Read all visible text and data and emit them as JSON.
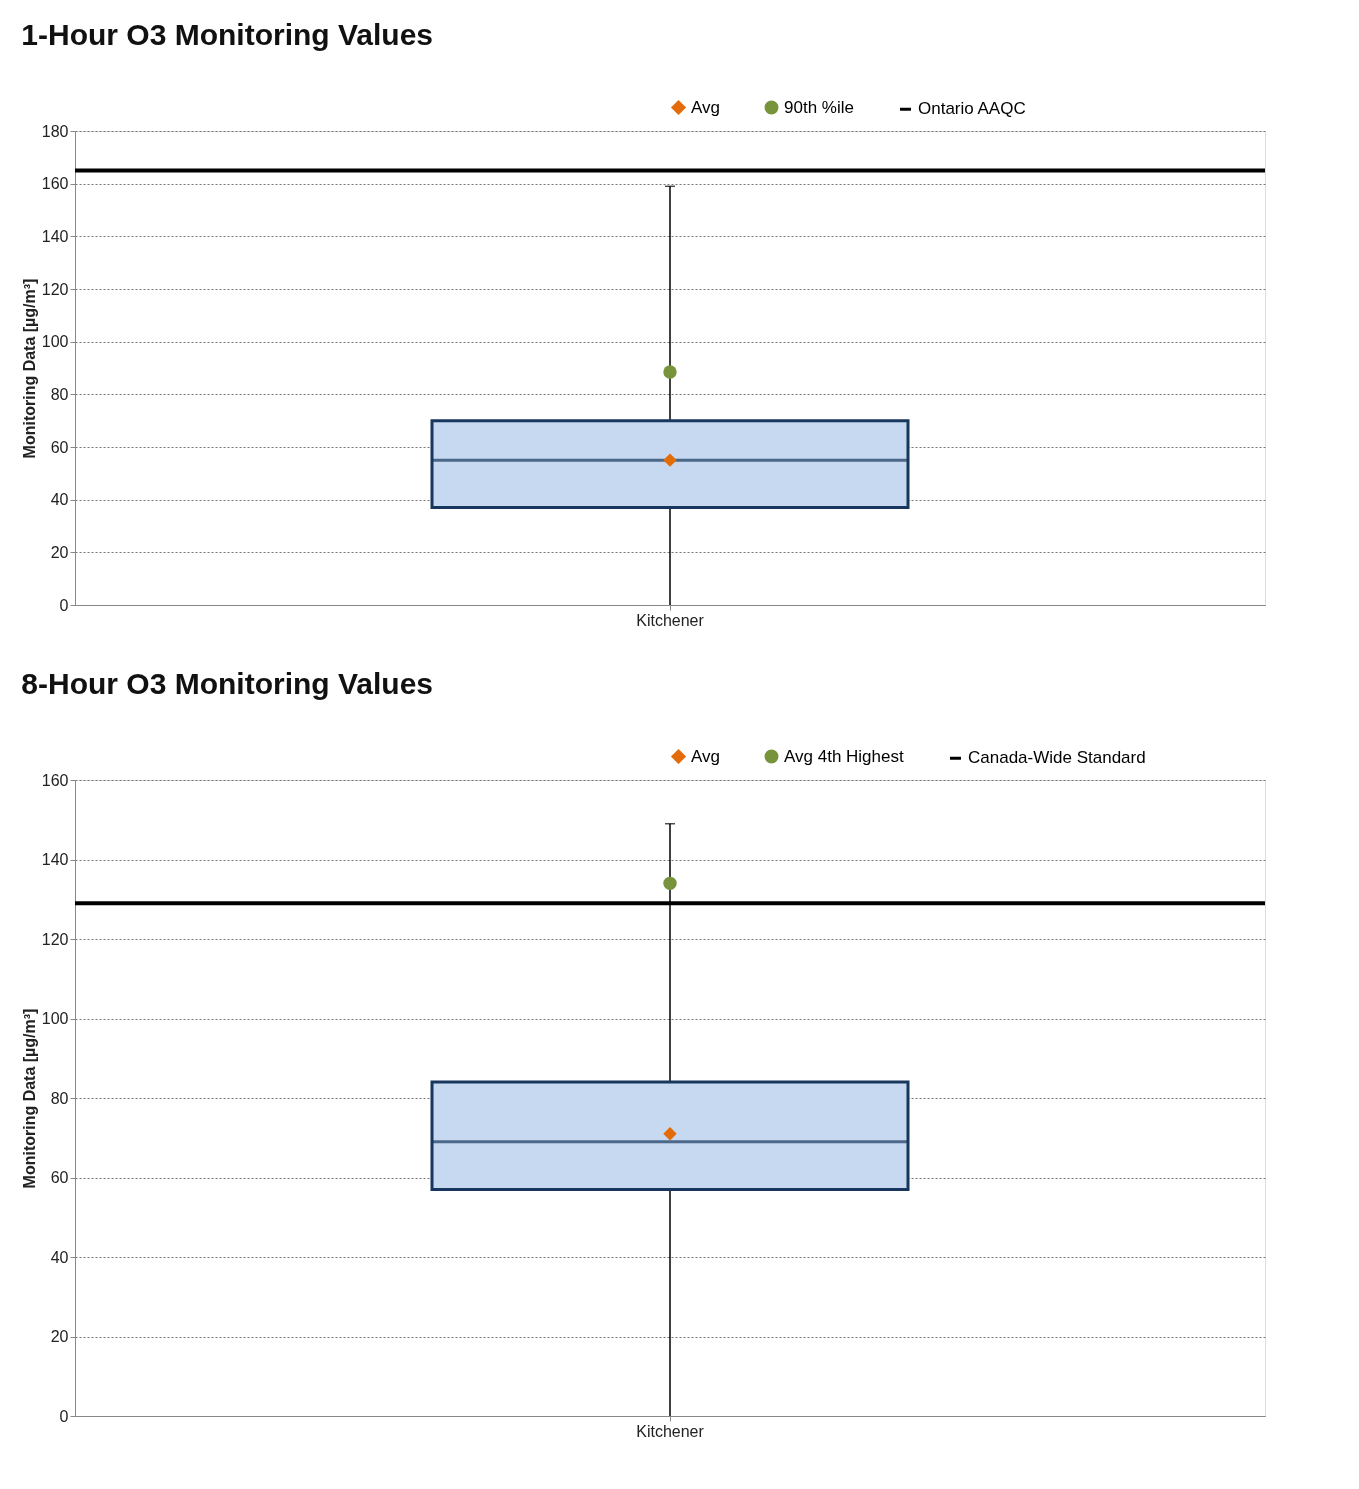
{
  "chart_data": [
    {
      "type": "box",
      "title": "1-Hour O3 Monitoring Values",
      "ylabel": "Monitoring Data [µg/m³]",
      "categories": [
        "Kitchener"
      ],
      "series": [
        {
          "type": "box",
          "color": "#c6d9f1",
          "boxes": [
            {
              "low": 0,
              "q1": 37,
              "median": 55,
              "q3": 70,
              "high": 159
            }
          ]
        },
        {
          "type": "scatter",
          "name": "Avg",
          "color": "#e36c09",
          "marker": "diamond",
          "x": [
            "Kitchener"
          ],
          "values": [
            55
          ]
        },
        {
          "type": "scatter",
          "name": "90th %ile",
          "color": "#77933c",
          "marker": "circle",
          "x": [
            "Kitchener"
          ],
          "values": [
            88.5
          ]
        }
      ],
      "ref_lines": [
        {
          "axis": "y",
          "value": 165,
          "label": "Ontario AAQC",
          "color": "#000000"
        }
      ],
      "ylim": [
        0,
        180
      ],
      "yticks": [
        0,
        20,
        40,
        60,
        80,
        100,
        120,
        140,
        160,
        180
      ],
      "grid": "y",
      "legend": "top right"
    },
    {
      "type": "box",
      "title": "8-Hour O3 Monitoring Values",
      "ylabel": "Monitoring Data [µg/m³]",
      "categories": [
        "Kitchener"
      ],
      "series": [
        {
          "type": "box",
          "color": "#c6d9f1",
          "boxes": [
            {
              "low": 0,
              "q1": 57,
              "median": 69,
              "q3": 84,
              "high": 149
            }
          ]
        },
        {
          "type": "scatter",
          "name": "Avg",
          "color": "#e36c09",
          "marker": "diamond",
          "x": [
            "Kitchener"
          ],
          "values": [
            71
          ]
        },
        {
          "type": "scatter",
          "name": "Avg 4th Highest",
          "color": "#77933c",
          "marker": "circle",
          "x": [
            "Kitchener"
          ],
          "values": [
            134
          ]
        }
      ],
      "ref_lines": [
        {
          "axis": "y",
          "value": 129,
          "label": "Canada-Wide Standard",
          "color": "#000000"
        }
      ],
      "ylim": [
        0,
        160
      ],
      "yticks": [
        0,
        20,
        40,
        60,
        80,
        100,
        120,
        140,
        160
      ],
      "grid": "y",
      "legend": "top right"
    }
  ]
}
